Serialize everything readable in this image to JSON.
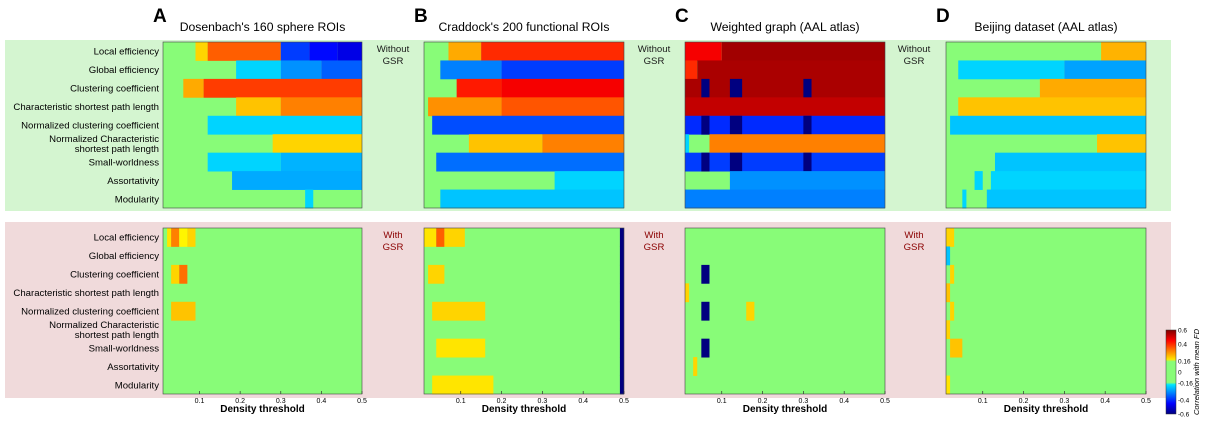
{
  "chart_data": {
    "type": "heatmap",
    "figure_kind": "heatmap-grid",
    "row_labels": [
      [
        "Local efficiency"
      ],
      [
        "Global efficiency"
      ],
      [
        "Clustering coefficient"
      ],
      [
        "Characteristic shortest path length"
      ],
      [
        "Normalized clustering coefficient"
      ],
      [
        "Normalized Characteristic",
        "shortest path length"
      ],
      [
        "Small-worldness"
      ],
      [
        "Assortativity"
      ],
      [
        "Modularity"
      ]
    ],
    "conditions": [
      {
        "label": [
          "Without",
          "GSR"
        ],
        "color": "#1a1a1a",
        "band": "#d4f5d0"
      },
      {
        "label": [
          "With",
          "GSR"
        ],
        "color": "#8b0000",
        "band": "#f0dadb"
      }
    ],
    "xlabel": "Density threshold",
    "xlim": [
      0.01,
      0.5
    ],
    "xticks": [
      0.1,
      0.2,
      0.3,
      0.4,
      0.5
    ],
    "xtick_labels": [
      "0.1",
      "0.2",
      "0.3",
      "0.4",
      "0.5"
    ],
    "colorbar": {
      "label": "Correlation with mean FD",
      "range": [
        -0.6,
        0.6
      ],
      "ticks": [
        0.6,
        0.4,
        0.16,
        0,
        -0.16,
        -0.4,
        -0.6
      ],
      "tick_labels": [
        "0.6",
        "0.4",
        "0.16",
        "0",
        "-0.16",
        "-0.4",
        "-0.6"
      ]
    },
    "panels": [
      {
        "letter": "A",
        "title": "Dosenbach's 160 sphere ROIs",
        "with_gsr_rows": [
          [
            [
              0.02,
              0.03,
              0.18
            ],
            [
              0.03,
              0.05,
              0.3
            ],
            [
              0.05,
              0.07,
              0.16
            ],
            [
              0.07,
              0.09,
              0.2
            ]
          ],
          [],
          [
            [
              0.03,
              0.05,
              0.2
            ],
            [
              0.05,
              0.07,
              0.32
            ]
          ],
          [],
          [
            [
              0.03,
              0.09,
              0.22
            ]
          ],
          [],
          [],
          [],
          []
        ],
        "without_gsr_rows": [
          [
            [
              0.09,
              0.12,
              0.2
            ],
            [
              0.12,
              0.3,
              0.34
            ],
            [
              0.3,
              0.37,
              -0.38
            ],
            [
              0.37,
              0.44,
              -0.44
            ],
            [
              0.44,
              0.5,
              -0.48
            ]
          ],
          [
            [
              0.19,
              0.3,
              -0.2
            ],
            [
              0.3,
              0.4,
              -0.28
            ],
            [
              0.4,
              0.5,
              -0.34
            ]
          ],
          [
            [
              0.06,
              0.11,
              0.25
            ],
            [
              0.11,
              0.5,
              0.38
            ]
          ],
          [
            [
              0.19,
              0.3,
              0.22
            ],
            [
              0.3,
              0.5,
              0.3
            ]
          ],
          [
            [
              0.12,
              0.5,
              -0.2
            ]
          ],
          [
            [
              0.28,
              0.5,
              0.2
            ]
          ],
          [
            [
              0.12,
              0.3,
              -0.2
            ],
            [
              0.3,
              0.5,
              -0.24
            ]
          ],
          [
            [
              0.18,
              0.5,
              -0.25
            ]
          ],
          [
            [
              0.36,
              0.38,
              -0.2
            ]
          ]
        ]
      },
      {
        "letter": "B",
        "title": "Craddock's 200 functional ROIs",
        "with_gsr_rows": [
          [
            [
              0.01,
              0.04,
              0.18
            ],
            [
              0.04,
              0.06,
              0.34
            ],
            [
              0.06,
              0.11,
              0.2
            ],
            [
              0.49,
              0.5,
              -0.62
            ]
          ],
          [
            [
              0.49,
              0.5,
              -0.62
            ]
          ],
          [
            [
              0.02,
              0.06,
              0.2
            ],
            [
              0.49,
              0.5,
              -0.62
            ]
          ],
          [
            [
              0.49,
              0.5,
              -0.62
            ]
          ],
          [
            [
              0.03,
              0.16,
              0.2
            ],
            [
              0.49,
              0.5,
              -0.62
            ]
          ],
          [
            [
              0.49,
              0.5,
              -0.62
            ]
          ],
          [
            [
              0.04,
              0.16,
              0.18
            ],
            [
              0.49,
              0.5,
              -0.62
            ]
          ],
          [
            [
              0.49,
              0.5,
              -0.62
            ]
          ],
          [
            [
              0.03,
              0.18,
              0.18
            ],
            [
              0.49,
              0.5,
              -0.62
            ]
          ]
        ],
        "without_gsr_rows": [
          [
            [
              0.07,
              0.15,
              0.25
            ],
            [
              0.15,
              0.5,
              0.4
            ]
          ],
          [
            [
              0.05,
              0.2,
              -0.3
            ],
            [
              0.2,
              0.5,
              -0.38
            ]
          ],
          [
            [
              0.09,
              0.2,
              0.42
            ],
            [
              0.2,
              0.5,
              0.46
            ]
          ],
          [
            [
              0.02,
              0.2,
              0.28
            ],
            [
              0.2,
              0.5,
              0.35
            ]
          ],
          [
            [
              0.03,
              0.5,
              -0.36
            ]
          ],
          [
            [
              0.12,
              0.3,
              0.22
            ],
            [
              0.3,
              0.5,
              0.3
            ]
          ],
          [
            [
              0.04,
              0.5,
              -0.32
            ]
          ],
          [
            [
              0.33,
              0.5,
              -0.2
            ]
          ],
          [
            [
              0.05,
              0.5,
              -0.22
            ]
          ]
        ]
      },
      {
        "letter": "C",
        "title": "Weighted graph (AAL atlas)",
        "with_gsr_rows": [
          [],
          [],
          [
            [
              0.05,
              0.07,
              -0.62
            ]
          ],
          [
            [
              0.01,
              0.02,
              0.2
            ]
          ],
          [
            [
              0.05,
              0.07,
              -0.62
            ],
            [
              0.16,
              0.18,
              0.2
            ]
          ],
          [],
          [
            [
              0.05,
              0.07,
              -0.62
            ]
          ],
          [
            [
              0.03,
              0.04,
              0.2
            ]
          ],
          []
        ],
        "without_gsr_rows": [
          [
            [
              0.01,
              0.1,
              0.46
            ],
            [
              0.1,
              0.5,
              0.56
            ]
          ],
          [
            [
              0.01,
              0.04,
              0.4
            ],
            [
              0.04,
              0.5,
              0.55
            ]
          ],
          [
            [
              0.01,
              0.5,
              0.55
            ],
            [
              0.05,
              0.07,
              -0.62
            ],
            [
              0.12,
              0.15,
              -0.62
            ],
            [
              0.3,
              0.32,
              -0.62
            ]
          ],
          [
            [
              0.01,
              0.5,
              0.52
            ]
          ],
          [
            [
              0.01,
              0.5,
              -0.4
            ],
            [
              0.05,
              0.07,
              -0.62
            ],
            [
              0.12,
              0.15,
              -0.62
            ],
            [
              0.3,
              0.32,
              -0.62
            ]
          ],
          [
            [
              0.01,
              0.02,
              -0.2
            ],
            [
              0.07,
              0.5,
              0.3
            ]
          ],
          [
            [
              0.01,
              0.5,
              -0.38
            ],
            [
              0.05,
              0.07,
              -0.62
            ],
            [
              0.12,
              0.15,
              -0.62
            ],
            [
              0.3,
              0.32,
              -0.62
            ]
          ],
          [
            [
              0.12,
              0.5,
              -0.28
            ]
          ],
          [
            [
              0.01,
              0.5,
              -0.3
            ]
          ]
        ]
      },
      {
        "letter": "D",
        "title": "Beijing dataset (AAL atlas)",
        "with_gsr_rows": [
          [
            [
              0.01,
              0.03,
              0.2
            ]
          ],
          [
            [
              0.01,
              0.02,
              -0.22
            ]
          ],
          [
            [
              0.02,
              0.03,
              0.2
            ]
          ],
          [
            [
              0.01,
              0.02,
              0.22
            ]
          ],
          [
            [
              0.02,
              0.03,
              0.2
            ]
          ],
          [
            [
              0.01,
              0.02,
              0.2
            ]
          ],
          [
            [
              0.02,
              0.05,
              0.22
            ]
          ],
          [],
          [
            [
              0.01,
              0.02,
              0.18
            ]
          ]
        ],
        "without_gsr_rows": [
          [
            [
              0.39,
              0.5,
              0.24
            ]
          ],
          [
            [
              0.04,
              0.3,
              -0.2
            ],
            [
              0.3,
              0.5,
              -0.26
            ]
          ],
          [
            [
              0.24,
              0.5,
              0.25
            ]
          ],
          [
            [
              0.04,
              0.5,
              0.22
            ]
          ],
          [
            [
              0.02,
              0.5,
              -0.22
            ]
          ],
          [
            [
              0.38,
              0.5,
              0.22
            ]
          ],
          [
            [
              0.13,
              0.5,
              -0.22
            ]
          ],
          [
            [
              0.08,
              0.1,
              -0.2
            ],
            [
              0.12,
              0.5,
              -0.2
            ]
          ],
          [
            [
              0.05,
              0.06,
              -0.2
            ],
            [
              0.11,
              0.5,
              -0.22
            ]
          ]
        ]
      }
    ]
  }
}
